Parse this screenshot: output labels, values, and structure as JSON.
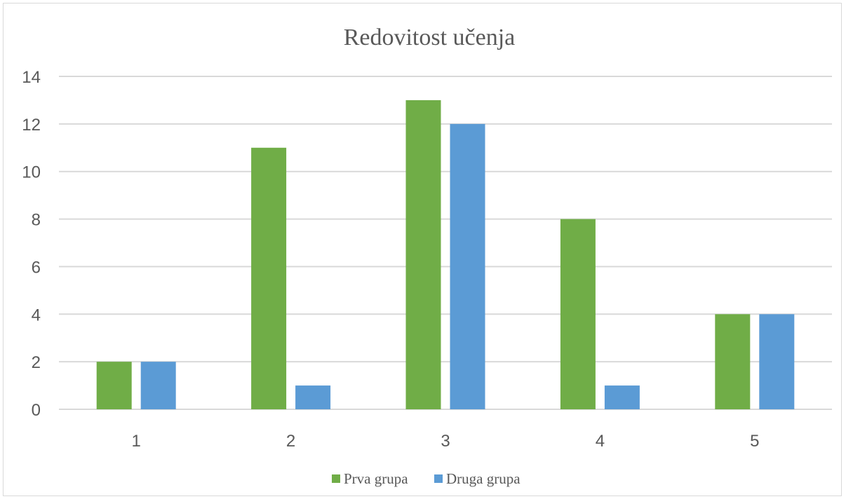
{
  "chart_data": {
    "type": "bar",
    "title": "Redovitost učenja",
    "xlabel": "",
    "ylabel": "",
    "categories": [
      "1",
      "2",
      "3",
      "4",
      "5"
    ],
    "series": [
      {
        "name": "Prva grupa",
        "values": [
          2,
          11,
          13,
          8,
          4
        ],
        "color": "#70ad47"
      },
      {
        "name": "Druga grupa",
        "values": [
          2,
          1,
          12,
          1,
          4
        ],
        "color": "#5b9bd5"
      }
    ],
    "ylim": [
      0,
      14
    ],
    "yticks": [
      0,
      2,
      4,
      6,
      8,
      10,
      12,
      14
    ],
    "grid": true,
    "legend_position": "bottom",
    "gridline_color": "#d9d9d9"
  }
}
